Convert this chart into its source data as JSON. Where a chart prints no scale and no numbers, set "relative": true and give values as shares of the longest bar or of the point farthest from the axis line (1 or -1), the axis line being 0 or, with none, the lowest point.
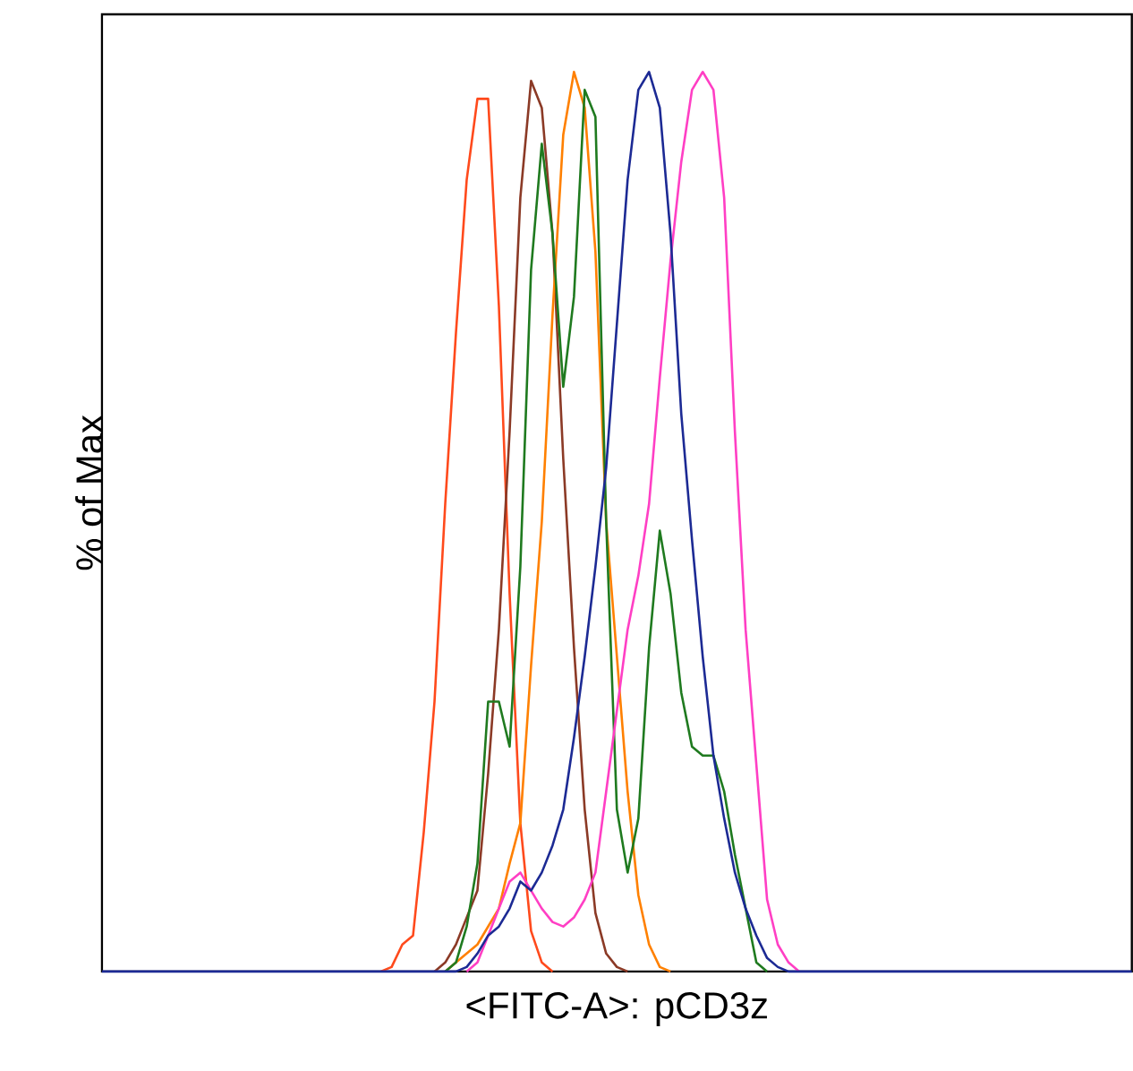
{
  "chart_data": {
    "type": "line",
    "relative": true,
    "xlabel": "<FITC-A>: pCD3z",
    "ylabel": "% of Max",
    "categories": [
      null,
      null,
      null,
      null,
      null,
      null,
      null,
      null,
      null,
      null,
      null,
      null,
      null,
      null,
      null,
      null,
      null,
      null,
      null,
      null,
      null,
      null,
      null,
      null,
      null,
      null,
      null,
      null,
      null,
      null,
      null,
      null,
      null,
      null,
      null,
      null,
      null,
      null,
      null,
      null,
      null,
      null,
      null,
      null,
      null,
      null,
      null,
      null,
      null,
      null,
      null,
      null,
      null,
      null,
      null,
      null,
      null,
      null,
      null,
      null,
      null,
      null,
      null,
      null,
      null,
      null,
      null,
      null,
      null,
      null,
      null,
      null,
      null,
      null,
      null,
      null,
      null,
      null,
      null,
      null,
      null,
      null,
      null,
      null,
      null,
      null,
      null,
      null,
      null,
      null,
      null,
      null,
      null,
      null,
      null,
      null,
      null
    ],
    "series": [
      {
        "color": "#ff4a1c",
        "values": [
          null,
          null,
          null,
          null,
          null,
          null,
          null,
          null,
          null,
          null,
          null,
          null,
          null,
          null,
          null,
          null,
          null,
          null,
          null,
          null,
          null,
          null,
          null,
          null,
          null,
          null,
          0,
          0.005,
          0.03,
          0.04,
          0.155,
          0.3,
          0.52,
          0.71,
          0.88,
          0.97,
          0.97,
          0.74,
          0.42,
          0.165,
          0.045,
          0.01,
          0,
          null,
          null,
          null,
          null,
          null,
          null,
          null,
          null,
          null,
          null,
          null,
          null,
          null,
          null,
          null,
          null,
          null,
          null,
          null,
          null,
          null,
          null,
          null,
          null,
          null,
          null,
          null,
          null,
          null,
          null,
          null,
          null,
          null,
          null,
          null,
          null,
          null,
          null,
          null,
          null,
          null,
          null,
          null,
          null,
          null,
          null,
          null,
          null,
          null,
          null,
          null,
          null,
          null,
          null
        ]
      },
      {
        "color": "#8b3a26",
        "values": [
          null,
          null,
          null,
          null,
          null,
          null,
          null,
          null,
          null,
          null,
          null,
          null,
          null,
          null,
          null,
          null,
          null,
          null,
          null,
          null,
          null,
          null,
          null,
          null,
          null,
          null,
          null,
          null,
          null,
          null,
          null,
          0,
          0.01,
          0.03,
          0.06,
          0.09,
          0.22,
          0.38,
          0.6,
          0.86,
          0.99,
          0.96,
          0.82,
          0.57,
          0.36,
          0.18,
          0.065,
          0.02,
          0.005,
          0,
          null,
          null,
          null,
          null,
          null,
          null,
          null,
          null,
          null,
          null,
          null,
          null,
          null,
          null,
          null,
          null,
          null,
          null,
          null,
          null,
          null,
          null,
          null,
          null,
          null,
          null,
          null,
          null,
          null,
          null,
          null,
          null,
          null,
          null,
          null,
          null,
          null,
          null,
          null,
          null,
          null,
          null,
          null,
          null,
          null,
          null,
          null
        ]
      },
      {
        "color": "#ff8000",
        "values": [
          null,
          null,
          null,
          null,
          null,
          null,
          null,
          null,
          null,
          null,
          null,
          null,
          null,
          null,
          null,
          null,
          null,
          null,
          null,
          null,
          null,
          null,
          null,
          null,
          null,
          null,
          null,
          null,
          null,
          null,
          null,
          null,
          0,
          0.01,
          0.02,
          0.03,
          0.05,
          0.07,
          0.12,
          0.165,
          0.34,
          0.5,
          0.73,
          0.93,
          1.0,
          0.96,
          0.8,
          0.5,
          0.35,
          0.2,
          0.085,
          0.03,
          0.005,
          0,
          null,
          null,
          null,
          null,
          null,
          null,
          null,
          null,
          null,
          null,
          null,
          null,
          null,
          null,
          null,
          null,
          null,
          null,
          null,
          null,
          null,
          null,
          null,
          null,
          null,
          null,
          null,
          null,
          null,
          null,
          null,
          null,
          null,
          null,
          null,
          null,
          null,
          null,
          null,
          null,
          null,
          null,
          null
        ]
      },
      {
        "color": "#1f7a1f",
        "values": [
          null,
          null,
          null,
          null,
          null,
          null,
          null,
          null,
          null,
          null,
          null,
          null,
          null,
          null,
          null,
          null,
          null,
          null,
          null,
          null,
          null,
          null,
          null,
          null,
          null,
          null,
          null,
          null,
          null,
          null,
          null,
          null,
          0,
          0.01,
          0.05,
          0.12,
          0.3,
          0.3,
          0.25,
          0.45,
          0.78,
          0.92,
          0.82,
          0.65,
          0.75,
          0.98,
          0.95,
          0.5,
          0.18,
          0.11,
          0.17,
          0.36,
          0.49,
          0.42,
          0.31,
          0.25,
          0.24,
          0.24,
          0.2,
          0.13,
          0.07,
          0.01,
          0,
          null,
          null,
          null,
          null,
          null,
          null,
          null,
          null,
          null,
          null,
          null,
          null,
          null,
          null,
          null,
          null,
          null,
          null,
          null,
          null,
          null,
          null,
          null,
          null,
          null,
          null,
          null,
          null,
          null,
          null,
          null,
          null,
          null,
          null
        ]
      },
      {
        "color": "#ff3fc4",
        "values": [
          null,
          null,
          null,
          null,
          null,
          null,
          null,
          null,
          null,
          null,
          null,
          null,
          null,
          null,
          null,
          null,
          null,
          null,
          null,
          null,
          null,
          null,
          null,
          null,
          null,
          null,
          null,
          null,
          null,
          null,
          null,
          null,
          null,
          null,
          0,
          0.01,
          0.04,
          0.07,
          0.1,
          0.11,
          0.09,
          0.07,
          0.055,
          0.05,
          0.06,
          0.08,
          0.11,
          0.2,
          0.29,
          0.38,
          0.44,
          0.52,
          0.66,
          0.79,
          0.9,
          0.98,
          1.0,
          0.98,
          0.86,
          0.6,
          0.38,
          0.23,
          0.08,
          0.03,
          0.01,
          0,
          null,
          null,
          null,
          null,
          null,
          null,
          null,
          null,
          null,
          null,
          null,
          null,
          null,
          null,
          null,
          null,
          null,
          null,
          null,
          null,
          null,
          null,
          null,
          null,
          null,
          null,
          null,
          null,
          null,
          null,
          null
        ]
      },
      {
        "color": "#1c2a94",
        "values": [
          0,
          0,
          0,
          0,
          0,
          0,
          0,
          0,
          0,
          0,
          0,
          0,
          0,
          0,
          0,
          0,
          0,
          0,
          0,
          0,
          0,
          0,
          0,
          0,
          0,
          0,
          0,
          0,
          0,
          0,
          0,
          0,
          0,
          0,
          0.005,
          0.02,
          0.04,
          0.05,
          0.07,
          0.1,
          0.09,
          0.11,
          0.14,
          0.18,
          0.26,
          0.35,
          0.45,
          0.56,
          0.72,
          0.88,
          0.98,
          1.0,
          0.96,
          0.82,
          0.62,
          0.48,
          0.35,
          0.24,
          0.17,
          0.11,
          0.07,
          0.04,
          0.015,
          0.005,
          0,
          0,
          0,
          0,
          0,
          0,
          0,
          0,
          0,
          0,
          0,
          0,
          0,
          0,
          0,
          0,
          0,
          0,
          0,
          0,
          0,
          0,
          0,
          0,
          0,
          0,
          0,
          0,
          0,
          0,
          0,
          0,
          0
        ]
      }
    ]
  }
}
